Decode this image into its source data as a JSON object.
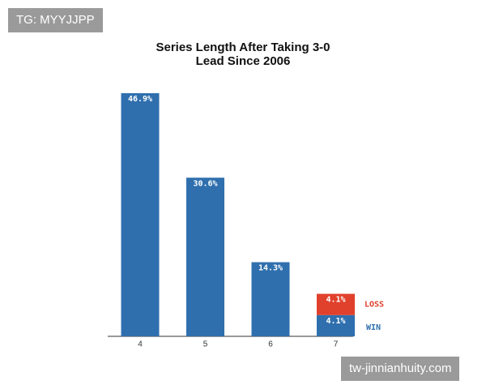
{
  "chart_data": {
    "type": "stacked-bar",
    "title": "Series Length After Taking 3-0 Lead Since 2006",
    "categories": [
      "4",
      "5",
      "6",
      "7"
    ],
    "series": [
      {
        "name": "WIN",
        "color": "#2f6fae",
        "values": [
          46.9,
          30.6,
          14.3,
          4.1
        ],
        "value_labels": [
          "46.9%",
          "30.6%",
          "14.3%",
          "4.1%"
        ]
      },
      {
        "name": "LOSS",
        "color": "#e0412c",
        "values": [
          null,
          null,
          null,
          4.1
        ],
        "value_labels": [
          null,
          null,
          null,
          "4.1%"
        ]
      }
    ]
  },
  "watermarks": [
    "TG: MYYJJPP",
    "tw-jinnianhuity.com"
  ]
}
